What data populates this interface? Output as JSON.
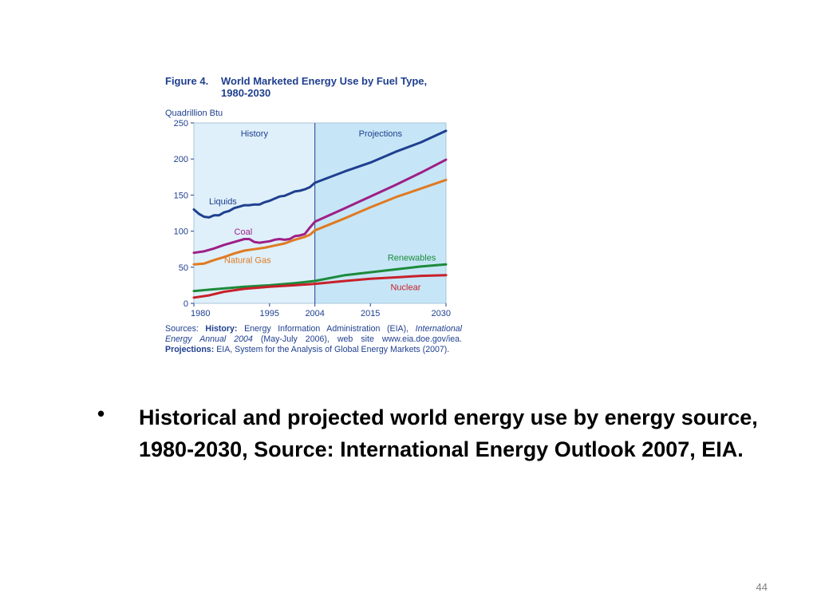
{
  "figure": {
    "title_label": "Figure 4.",
    "title_text": "World Marketed Energy Use by Fuel Type, 1980-2030",
    "unit": "Quadrillion Btu",
    "history_label": "History",
    "projections_label": "Projections",
    "sources": {
      "prefix": "Sources:",
      "history_label": "History:",
      "history_text": "Energy Information Administration (EIA), ",
      "history_pub": "International Energy Annual 2004",
      "history_rest": " (May-July 2006), web site www.eia.doe.gov/iea.",
      "projections_label": "Projections:",
      "projections_text": "EIA, System for the Analysis of Global Energy Markets (2007)."
    }
  },
  "chart_data": {
    "type": "line",
    "title": "World Marketed Energy Use by Fuel Type, 1980-2030",
    "ylabel": "Quadrillion Btu",
    "xlabel": "",
    "xlim": [
      1980,
      2030
    ],
    "ylim": [
      0,
      250
    ],
    "x_ticks": [
      "1980",
      "1995",
      "2004",
      "2015",
      "2030"
    ],
    "y_ticks": [
      "0",
      "50",
      "100",
      "150",
      "200",
      "250"
    ],
    "divider_year": 2004,
    "grid": false,
    "legend": "inline labels",
    "series": [
      {
        "name": "Liquids",
        "color": "#1f3f8f",
        "points": [
          [
            1980,
            130
          ],
          [
            1981,
            124
          ],
          [
            1982,
            120
          ],
          [
            1983,
            119
          ],
          [
            1984,
            122
          ],
          [
            1985,
            122
          ],
          [
            1986,
            126
          ],
          [
            1987,
            128
          ],
          [
            1988,
            132
          ],
          [
            1989,
            134
          ],
          [
            1990,
            136
          ],
          [
            1991,
            136
          ],
          [
            1992,
            137
          ],
          [
            1993,
            137
          ],
          [
            1994,
            140
          ],
          [
            1995,
            142
          ],
          [
            1996,
            145
          ],
          [
            1997,
            148
          ],
          [
            1998,
            149
          ],
          [
            1999,
            152
          ],
          [
            2000,
            155
          ],
          [
            2001,
            156
          ],
          [
            2002,
            158
          ],
          [
            2003,
            161
          ],
          [
            2004,
            167
          ],
          [
            2010,
            183
          ],
          [
            2015,
            195
          ],
          [
            2020,
            210
          ],
          [
            2025,
            223
          ],
          [
            2030,
            239
          ]
        ]
      },
      {
        "name": "Coal",
        "color": "#9e1f86",
        "points": [
          [
            1980,
            70
          ],
          [
            1982,
            72
          ],
          [
            1984,
            76
          ],
          [
            1986,
            81
          ],
          [
            1988,
            85
          ],
          [
            1990,
            89
          ],
          [
            1991,
            89
          ],
          [
            1992,
            85
          ],
          [
            1993,
            84
          ],
          [
            1994,
            85
          ],
          [
            1995,
            86
          ],
          [
            1996,
            88
          ],
          [
            1997,
            89
          ],
          [
            1998,
            88
          ],
          [
            1999,
            89
          ],
          [
            2000,
            93
          ],
          [
            2001,
            94
          ],
          [
            2002,
            96
          ],
          [
            2003,
            105
          ],
          [
            2004,
            113
          ],
          [
            2010,
            132
          ],
          [
            2015,
            148
          ],
          [
            2020,
            164
          ],
          [
            2025,
            181
          ],
          [
            2030,
            199
          ]
        ]
      },
      {
        "name": "Natural Gas",
        "color": "#e07a22",
        "points": [
          [
            1980,
            54
          ],
          [
            1982,
            55
          ],
          [
            1984,
            60
          ],
          [
            1986,
            64
          ],
          [
            1988,
            69
          ],
          [
            1990,
            73
          ],
          [
            1992,
            75
          ],
          [
            1994,
            77
          ],
          [
            1996,
            80
          ],
          [
            1998,
            83
          ],
          [
            2000,
            88
          ],
          [
            2002,
            92
          ],
          [
            2003,
            95
          ],
          [
            2004,
            101
          ],
          [
            2010,
            118
          ],
          [
            2015,
            133
          ],
          [
            2020,
            147
          ],
          [
            2025,
            159
          ],
          [
            2030,
            171
          ]
        ]
      },
      {
        "name": "Renewables",
        "color": "#1c8a3a",
        "points": [
          [
            1980,
            17
          ],
          [
            1985,
            20
          ],
          [
            1990,
            23
          ],
          [
            1995,
            25
          ],
          [
            2000,
            28
          ],
          [
            2004,
            31
          ],
          [
            2010,
            39
          ],
          [
            2015,
            43
          ],
          [
            2020,
            47
          ],
          [
            2025,
            51
          ],
          [
            2030,
            54
          ]
        ]
      },
      {
        "name": "Nuclear",
        "color": "#c8202a",
        "points": [
          [
            1980,
            8
          ],
          [
            1983,
            11
          ],
          [
            1986,
            16
          ],
          [
            1990,
            20
          ],
          [
            1995,
            23
          ],
          [
            2000,
            25
          ],
          [
            2004,
            27
          ],
          [
            2010,
            31
          ],
          [
            2015,
            34
          ],
          [
            2020,
            36
          ],
          [
            2025,
            38
          ],
          [
            2030,
            39
          ]
        ]
      }
    ]
  },
  "bullet": {
    "marker": "•",
    "text": "Historical and projected world energy use by energy source, 1980-2030, Source: International Energy Outlook 2007, EIA."
  },
  "page_number": "44"
}
